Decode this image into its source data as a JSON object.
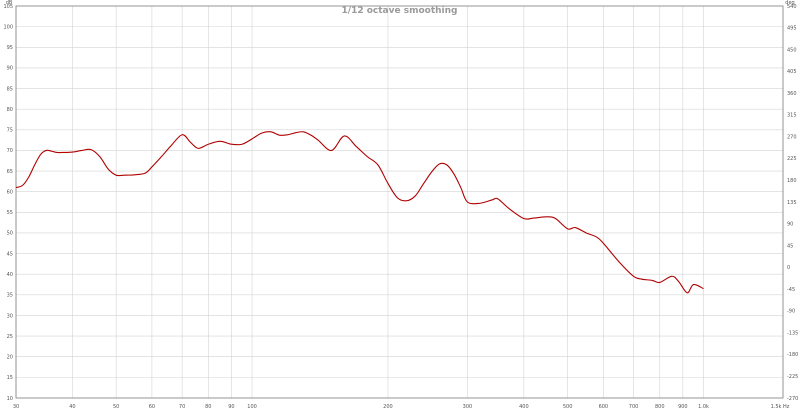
{
  "chart_data": {
    "type": "line",
    "title": "1/12 octave smoothing",
    "x_scale": "log",
    "xlim": [
      30,
      1500
    ],
    "ylim": [
      10,
      105
    ],
    "y2lim": [
      -270,
      540
    ],
    "left_unit": "dB",
    "right_unit": "deg",
    "bottom_unit": "1.5k Hz",
    "grid": true,
    "line_color": "#b00000",
    "x_ticks": [
      {
        "value": 30,
        "label": "30"
      },
      {
        "value": 40,
        "label": "40"
      },
      {
        "value": 50,
        "label": "50"
      },
      {
        "value": 60,
        "label": "60"
      },
      {
        "value": 70,
        "label": "70"
      },
      {
        "value": 80,
        "label": "80"
      },
      {
        "value": 90,
        "label": "90"
      },
      {
        "value": 100,
        "label": "100"
      },
      {
        "value": 200,
        "label": "200"
      },
      {
        "value": 300,
        "label": "300"
      },
      {
        "value": 400,
        "label": "400"
      },
      {
        "value": 500,
        "label": "500"
      },
      {
        "value": 600,
        "label": "600"
      },
      {
        "value": 700,
        "label": "700"
      },
      {
        "value": 800,
        "label": "800"
      },
      {
        "value": 900,
        "label": "900"
      },
      {
        "value": 1000,
        "label": "1.0k"
      }
    ],
    "y_ticks": [
      "105",
      "100",
      "95",
      "90",
      "85",
      "80",
      "75",
      "70",
      "65",
      "60",
      "55",
      "50",
      "45",
      "40",
      "35",
      "30",
      "25",
      "20",
      "15",
      "10"
    ],
    "y2_ticks": [
      "540",
      "495",
      "450",
      "405",
      "360",
      "315",
      "270",
      "225",
      "180",
      "135",
      "90",
      "45",
      "0",
      "-45",
      "-90",
      "-135",
      "-180",
      "-225",
      "-270"
    ],
    "series": [
      {
        "x": [
          30,
          31,
          32,
          33,
          34,
          35,
          36,
          37,
          38,
          40,
          42,
          44,
          46,
          48,
          50,
          52,
          55,
          58,
          60,
          63,
          66,
          70,
          73,
          76,
          80,
          85,
          90,
          95,
          100,
          105,
          110,
          115,
          120,
          125,
          130,
          135,
          140,
          150,
          160,
          170,
          180,
          190,
          200,
          210,
          220,
          230,
          240,
          250,
          260,
          270,
          280,
          290,
          300,
          320,
          340,
          350,
          370,
          400,
          420,
          450,
          470,
          500,
          520,
          550,
          580,
          600,
          650,
          700,
          730,
          770,
          800,
          850,
          880,
          920,
          950,
          1000
        ],
        "y": [
          61,
          61.5,
          63.5,
          66.5,
          69,
          70,
          69.8,
          69.5,
          69.5,
          69.6,
          70,
          70.2,
          68.5,
          65.5,
          64,
          64,
          64.1,
          64.5,
          66,
          68.5,
          71,
          73.8,
          72,
          70.5,
          71.5,
          72.2,
          71.5,
          71.5,
          72.8,
          74.2,
          74.5,
          73.7,
          73.8,
          74.3,
          74.5,
          73.7,
          72.5,
          70,
          73.5,
          71,
          68.5,
          66.5,
          62,
          58.5,
          57.8,
          59,
          62,
          64.8,
          66.7,
          66.5,
          64.3,
          61,
          57.5,
          57.2,
          58,
          58.3,
          56,
          53.5,
          53.6,
          53.9,
          53.5,
          51,
          51.3,
          50,
          49,
          47.5,
          43,
          39.5,
          38.8,
          38.5,
          38,
          39.5,
          38.3,
          35.5,
          37.5,
          36.5
        ]
      }
    ]
  }
}
